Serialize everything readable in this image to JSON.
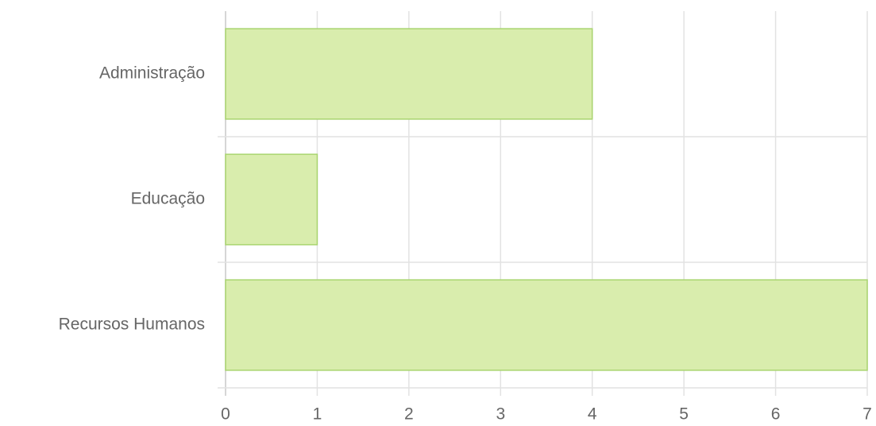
{
  "chart_data": {
    "type": "bar",
    "orientation": "horizontal",
    "categories": [
      "Administração",
      "Educação",
      "Recursos Humanos"
    ],
    "values": [
      4,
      1,
      7
    ],
    "color": "#d9edad",
    "edge_color": "#a9d46f",
    "xlim": [
      0,
      7
    ],
    "xticks": [
      0,
      1,
      2,
      3,
      4,
      5,
      6,
      7
    ],
    "grid": true
  }
}
